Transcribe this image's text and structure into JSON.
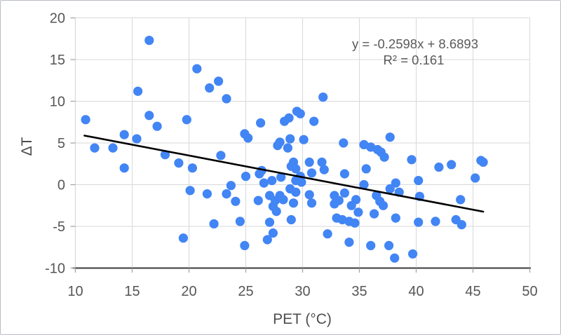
{
  "chart_data": {
    "type": "scatter",
    "title": "",
    "xlabel": "PET (°C)",
    "ylabel": "ΔT",
    "xlim": [
      10,
      50
    ],
    "ylim": [
      -10,
      20
    ],
    "xticks": [
      10,
      15,
      20,
      25,
      30,
      35,
      40,
      45,
      50
    ],
    "yticks": [
      -10,
      -5,
      0,
      5,
      10,
      15,
      20
    ],
    "grid": true,
    "legend": "none",
    "point_color": "#4285f4",
    "trendline_color": "#000000",
    "annotation": {
      "line1": "y = -0.2598x + 8.6893",
      "line2": "R² = 0.161"
    },
    "trendline": {
      "slope": -0.2598,
      "intercept": 8.6893,
      "x_start": 10.8,
      "x_end": 45.9
    },
    "points": [
      [
        10.9,
        7.8
      ],
      [
        11.7,
        4.4
      ],
      [
        13.3,
        4.4
      ],
      [
        14.3,
        6.0
      ],
      [
        14.3,
        2.0
      ],
      [
        15.4,
        5.5
      ],
      [
        15.5,
        11.2
      ],
      [
        16.5,
        17.3
      ],
      [
        16.5,
        8.3
      ],
      [
        17.2,
        7.0
      ],
      [
        17.9,
        3.6
      ],
      [
        19.1,
        2.6
      ],
      [
        19.5,
        -6.4
      ],
      [
        19.8,
        7.8
      ],
      [
        20.3,
        2.0
      ],
      [
        20.1,
        -0.7
      ],
      [
        20.7,
        13.9
      ],
      [
        21.6,
        -1.1
      ],
      [
        21.8,
        11.6
      ],
      [
        22.2,
        -4.7
      ],
      [
        22.6,
        12.4
      ],
      [
        22.8,
        3.5
      ],
      [
        23.3,
        10.3
      ],
      [
        23.3,
        -1.1
      ],
      [
        23.7,
        -0.1
      ],
      [
        24.1,
        -2.0
      ],
      [
        24.5,
        -4.4
      ],
      [
        24.9,
        6.1
      ],
      [
        25.2,
        5.6
      ],
      [
        25.0,
        1.0
      ],
      [
        24.9,
        -7.3
      ],
      [
        26.3,
        7.4
      ],
      [
        26.2,
        1.3
      ],
      [
        26.4,
        1.7
      ],
      [
        26.1,
        -1.9
      ],
      [
        26.6,
        0.2
      ],
      [
        26.9,
        -6.6
      ],
      [
        27.1,
        -1.3
      ],
      [
        27.3,
        0.5
      ],
      [
        27.4,
        -5.8
      ],
      [
        27.6,
        -1.9
      ],
      [
        27.4,
        -2.6
      ],
      [
        27.7,
        -3.2
      ],
      [
        27.8,
        4.7
      ],
      [
        28.0,
        5.1
      ],
      [
        28.1,
        0.9
      ],
      [
        28.0,
        -1.3
      ],
      [
        28.3,
        -1.8
      ],
      [
        28.4,
        7.6
      ],
      [
        27.1,
        -4.5
      ],
      [
        28.8,
        8.0
      ],
      [
        28.9,
        5.5
      ],
      [
        28.7,
        4.4
      ],
      [
        28.9,
        -0.5
      ],
      [
        29.0,
        2.2
      ],
      [
        29.2,
        2.7
      ],
      [
        29.4,
        1.9
      ],
      [
        29.4,
        -0.9
      ],
      [
        29.2,
        -2.2
      ],
      [
        29.5,
        8.8
      ],
      [
        29.8,
        8.5
      ],
      [
        29.4,
        0.5
      ],
      [
        29.8,
        1.0
      ],
      [
        29.9,
        0.3
      ],
      [
        29.0,
        -4.2
      ],
      [
        30.1,
        5.4
      ],
      [
        30.6,
        2.7
      ],
      [
        30.8,
        1.4
      ],
      [
        30.6,
        -1.2
      ],
      [
        30.8,
        -2.2
      ],
      [
        31.0,
        7.6
      ],
      [
        31.8,
        10.5
      ],
      [
        31.7,
        2.7
      ],
      [
        31.9,
        1.8
      ],
      [
        32.2,
        -5.9
      ],
      [
        32.8,
        -1.3
      ],
      [
        32.8,
        -2.3
      ],
      [
        33.0,
        -4.0
      ],
      [
        33.2,
        -1.9
      ],
      [
        33.6,
        5.0
      ],
      [
        33.7,
        1.3
      ],
      [
        33.7,
        -1.0
      ],
      [
        33.5,
        -4.2
      ],
      [
        34.1,
        -4.4
      ],
      [
        34.6,
        -4.6
      ],
      [
        34.3,
        -2.5
      ],
      [
        34.7,
        -1.8
      ],
      [
        34.1,
        -6.9
      ],
      [
        34.9,
        -3.3
      ],
      [
        35.4,
        4.8
      ],
      [
        35.4,
        0.0
      ],
      [
        35.6,
        1.9
      ],
      [
        36.0,
        4.5
      ],
      [
        36.6,
        4.2
      ],
      [
        36.9,
        3.9
      ],
      [
        37.2,
        3.3
      ],
      [
        36.5,
        -1.3
      ],
      [
        36.8,
        -2.0
      ],
      [
        37.1,
        -2.5
      ],
      [
        36.3,
        -3.5
      ],
      [
        36.0,
        -7.3
      ],
      [
        37.6,
        -7.3
      ],
      [
        37.7,
        5.7
      ],
      [
        37.7,
        -0.5
      ],
      [
        38.2,
        0.2
      ],
      [
        38.5,
        -0.9
      ],
      [
        38.2,
        -4.0
      ],
      [
        38.1,
        -8.8
      ],
      [
        39.7,
        -8.3
      ],
      [
        39.6,
        3.0
      ],
      [
        40.2,
        0.5
      ],
      [
        40.3,
        -1.4
      ],
      [
        40.2,
        -4.5
      ],
      [
        41.7,
        -4.4
      ],
      [
        42.0,
        2.1
      ],
      [
        43.1,
        2.4
      ],
      [
        43.5,
        -4.2
      ],
      [
        44.0,
        -4.8
      ],
      [
        43.9,
        -1.8
      ],
      [
        45.2,
        0.8
      ],
      [
        45.7,
        2.9
      ],
      [
        45.9,
        2.7
      ]
    ],
    "style": {
      "grid_color": "#d9d9d9",
      "axis_line_color": "#3b3b3b",
      "tick_mark_color": "#a6a6a6",
      "point_radius": 6.6,
      "trendline_width": 2.6
    }
  }
}
